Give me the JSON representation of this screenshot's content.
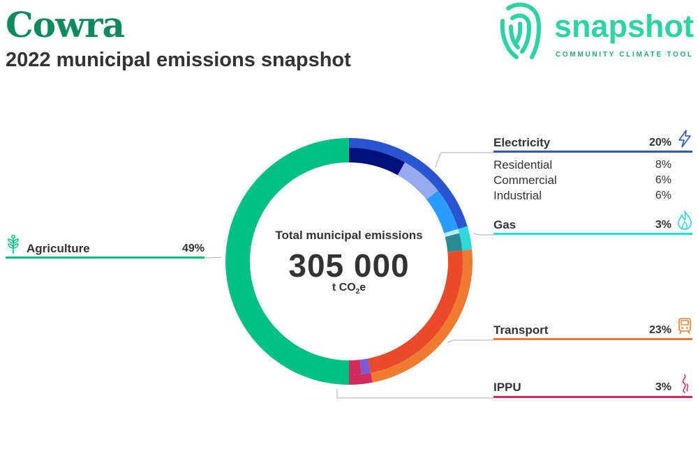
{
  "header": {
    "title": "Cowra",
    "subtitle": "2022 municipal emissions snapshot"
  },
  "logo": {
    "word": "snapshot",
    "tagline": "COMMUNITY CLIMATE TOOL",
    "icon": "fingerprint-icon"
  },
  "colors": {
    "title": "#0f8a5f",
    "agriculture": "#00c084",
    "electricity": "#2a55d1",
    "gas": "#2fd9d9",
    "transport": "#f07a30",
    "ippu": "#d02b5c"
  },
  "chart_data": {
    "type": "pie",
    "donut": true,
    "center_label": "Total municipal emissions",
    "total": "305 000",
    "unit": "t CO2e",
    "slices": [
      {
        "name": "Electricity",
        "value": 20,
        "label": "20%",
        "color": "#2a55d1",
        "icon": "lightning-icon",
        "sub": [
          {
            "name": "Residential",
            "value": 8,
            "label": "8%",
            "color": "#000f7a"
          },
          {
            "name": "Commercial",
            "value": 6,
            "label": "6%",
            "color": "#97aaef"
          },
          {
            "name": "Industrial",
            "value": 6,
            "label": "6%",
            "color": "#2b9cff"
          }
        ]
      },
      {
        "name": "Gas",
        "value": 3,
        "label": "3%",
        "color": "#2fd9d9",
        "icon": "flame-icon",
        "sub": [
          {
            "name": "",
            "value": 0.6,
            "color": "#b4eef0"
          },
          {
            "name": "",
            "value": 2.4,
            "color": "#2a8a94"
          }
        ]
      },
      {
        "name": "Transport",
        "value": 23,
        "label": "23%",
        "color": "#f07a30",
        "icon": "train-icon",
        "sub": [
          {
            "name": "",
            "value": 23,
            "color": "#ea4a2a"
          }
        ]
      },
      {
        "name": "IPPU",
        "value": 3,
        "label": "3%",
        "color": "#d02b5c",
        "icon": "smoke-icon",
        "sub": [
          {
            "name": "",
            "value": 1.3,
            "color": "#7f5ad6"
          },
          {
            "name": "",
            "value": 1.7,
            "color": "#d02b5c"
          }
        ]
      },
      {
        "name": "Agriculture",
        "value": 49,
        "label": "49%",
        "color": "#00c084",
        "icon": "wheat-icon",
        "sub": []
      }
    ]
  }
}
